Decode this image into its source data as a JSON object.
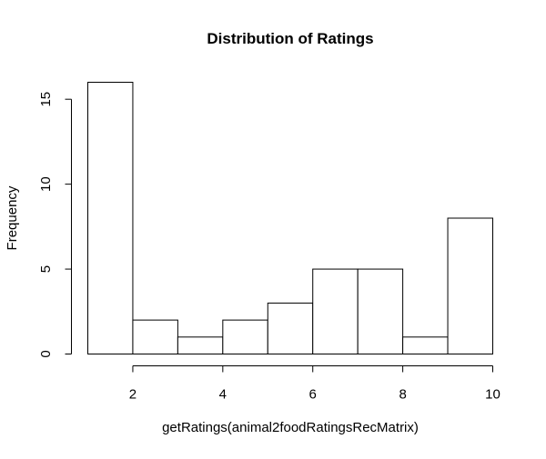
{
  "chart_data": {
    "type": "bar",
    "title": "Distribution of Ratings",
    "xlabel": "getRatings(animal2foodRatingsRecMatrix)",
    "ylabel": "Frequency",
    "bins": [
      {
        "start": 1,
        "end": 2,
        "count": 16
      },
      {
        "start": 2,
        "end": 3,
        "count": 2
      },
      {
        "start": 3,
        "end": 4,
        "count": 1
      },
      {
        "start": 4,
        "end": 5,
        "count": 2
      },
      {
        "start": 5,
        "end": 6,
        "count": 3
      },
      {
        "start": 6,
        "end": 7,
        "count": 5
      },
      {
        "start": 7,
        "end": 8,
        "count": 5
      },
      {
        "start": 8,
        "end": 9,
        "count": 1
      },
      {
        "start": 9,
        "end": 10,
        "count": 8
      }
    ],
    "xlim": [
      1,
      10
    ],
    "ylim": [
      0,
      16
    ],
    "x_ticks": [
      2,
      4,
      6,
      8,
      10
    ],
    "y_ticks": [
      0,
      5,
      10,
      15
    ],
    "grid": false,
    "bar_fill": "#ffffff",
    "bar_stroke": "#000000"
  }
}
